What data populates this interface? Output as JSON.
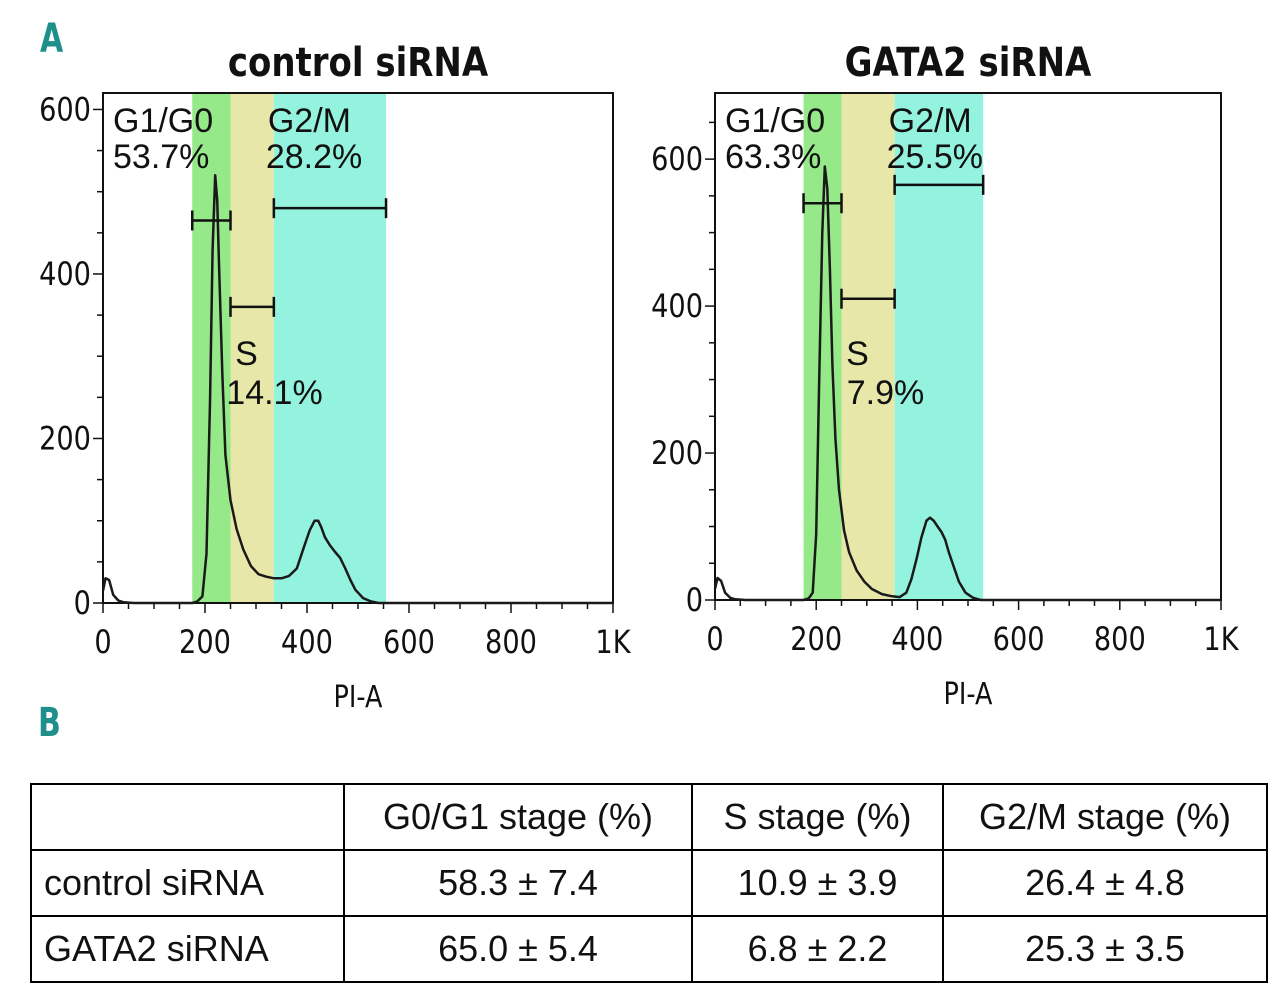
{
  "panel_labels": {
    "a": "A",
    "b": "B"
  },
  "colors": {
    "g1_band": "#8fe882",
    "s_band": "#e6e6a5",
    "g2m_band": "#8ef2dc",
    "curve": "#1a1a1a",
    "panel_letter": "#1f8f8c"
  },
  "chart_data": [
    {
      "type": "line",
      "title": "control siRNA",
      "xlabel": "PI-A",
      "ylabel": "",
      "xlim": [
        0,
        1000
      ],
      "ylim": [
        0,
        620
      ],
      "x_ticks": [
        0,
        200,
        400,
        600,
        800,
        1000
      ],
      "x_tick_labels": [
        "0",
        "200",
        "400",
        "600",
        "800",
        "1K"
      ],
      "y_ticks": [
        0,
        200,
        400,
        600
      ],
      "y_tick_labels": [
        "0",
        "200",
        "400",
        "600"
      ],
      "gates": [
        {
          "name": "G1/G0",
          "percent": "53.7%",
          "range": [
            175,
            250
          ],
          "bar_y": 465
        },
        {
          "name": "S",
          "percent": "14.1%",
          "range": [
            250,
            335
          ],
          "bar_y": 360
        },
        {
          "name": "G2/M",
          "percent": "28.2%",
          "range": [
            335,
            555
          ],
          "bar_y": 480
        }
      ],
      "series": [
        {
          "name": "DNA content histogram",
          "x": [
            0,
            5,
            12,
            20,
            30,
            40,
            60,
            100,
            150,
            175,
            185,
            195,
            203,
            210,
            215,
            220,
            224,
            228,
            234,
            240,
            250,
            262,
            275,
            290,
            305,
            320,
            335,
            350,
            365,
            380,
            395,
            405,
            415,
            422,
            428,
            435,
            445,
            455,
            465,
            475,
            485,
            495,
            510,
            525,
            540,
            555,
            570,
            600,
            700,
            800,
            900,
            1000
          ],
          "y": [
            15,
            30,
            28,
            10,
            3,
            1,
            0,
            0,
            0,
            0,
            2,
            8,
            60,
            250,
            430,
            520,
            490,
            400,
            280,
            180,
            125,
            90,
            65,
            45,
            35,
            32,
            30,
            30,
            33,
            42,
            70,
            88,
            100,
            100,
            92,
            80,
            70,
            62,
            55,
            42,
            28,
            16,
            6,
            2,
            0,
            0,
            0,
            0,
            0,
            0,
            0,
            0
          ]
        }
      ]
    },
    {
      "type": "line",
      "title": "GATA2 siRNA",
      "xlabel": "PI-A",
      "ylabel": "",
      "xlim": [
        0,
        1000
      ],
      "ylim": [
        0,
        690
      ],
      "x_ticks": [
        0,
        200,
        400,
        600,
        800,
        1000
      ],
      "x_tick_labels": [
        "0",
        "200",
        "400",
        "600",
        "800",
        "1K"
      ],
      "y_ticks": [
        0,
        200,
        400,
        600
      ],
      "y_tick_labels": [
        "0",
        "200",
        "400",
        "600"
      ],
      "gates": [
        {
          "name": "G1/G0",
          "percent": "63.3%",
          "range": [
            175,
            250
          ],
          "bar_y": 540
        },
        {
          "name": "S",
          "percent": "7.9%",
          "range": [
            250,
            355
          ],
          "bar_y": 410
        },
        {
          "name": "G2/M",
          "percent": "25.5%",
          "range": [
            355,
            530
          ],
          "bar_y": 565
        }
      ],
      "series": [
        {
          "name": "DNA content histogram",
          "x": [
            0,
            5,
            12,
            20,
            30,
            40,
            60,
            100,
            150,
            175,
            185,
            193,
            200,
            206,
            212,
            217,
            222,
            227,
            232,
            238,
            245,
            255,
            265,
            280,
            295,
            310,
            330,
            350,
            365,
            378,
            388,
            398,
            408,
            418,
            425,
            432,
            440,
            448,
            455,
            462,
            472,
            482,
            495,
            510,
            525,
            540,
            560,
            600,
            700,
            800,
            900,
            1000
          ],
          "y": [
            15,
            30,
            26,
            10,
            3,
            1,
            0,
            0,
            0,
            0,
            2,
            10,
            90,
            300,
            500,
            590,
            560,
            450,
            320,
            220,
            150,
            95,
            65,
            40,
            25,
            15,
            8,
            5,
            4,
            10,
            28,
            55,
            85,
            108,
            112,
            108,
            100,
            92,
            82,
            65,
            45,
            25,
            10,
            3,
            0,
            0,
            0,
            0,
            0,
            0,
            0,
            0
          ]
        }
      ]
    }
  ],
  "table": {
    "headers": [
      "",
      "G0/G1 stage (%)",
      "S stage (%)",
      "G2/M stage (%)"
    ],
    "rows": [
      {
        "label": "control siRNA",
        "g0g1": "58.3 ± 7.4",
        "s": "10.9 ± 3.9",
        "g2m": "26.4 ± 4.8"
      },
      {
        "label": "GATA2 siRNA",
        "g0g1": "65.0 ± 5.4",
        "s": "6.8 ± 2.2",
        "g2m": "25.3 ± 3.5"
      }
    ]
  }
}
